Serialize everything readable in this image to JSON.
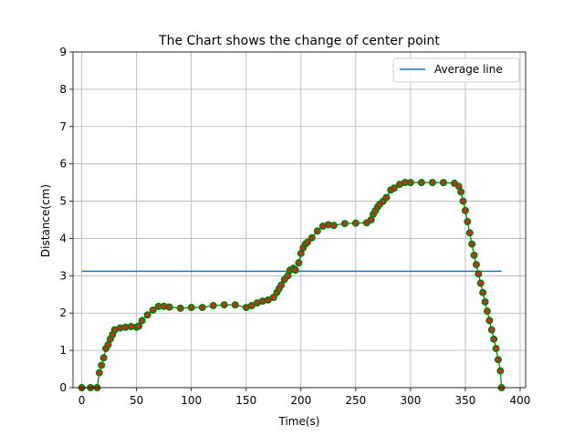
{
  "chart_data": {
    "type": "line",
    "title": "The Chart shows the change of center point",
    "xlabel": "Time(s)",
    "ylabel": "Distance(cm)",
    "xlim": [
      -8,
      405
    ],
    "ylim": [
      0,
      9
    ],
    "xticks": [
      0,
      50,
      100,
      150,
      200,
      250,
      300,
      350,
      400
    ],
    "yticks": [
      0,
      1,
      2,
      3,
      4,
      5,
      6,
      7,
      8,
      9
    ],
    "grid": true,
    "legend": {
      "placement": "top-right",
      "entries": [
        "Average line"
      ]
    },
    "colors": {
      "average_line": "#1f77b4",
      "series_line": "#008000",
      "marker_fill": "#d62728",
      "marker_edge": "#008000",
      "grid": "#b0b0b0"
    },
    "series": [
      {
        "name": "Average line",
        "x": [
          0,
          383
        ],
        "y": [
          3.12,
          3.12
        ]
      },
      {
        "x": [
          0,
          8,
          14,
          16,
          18,
          20,
          22,
          24,
          26,
          28,
          30,
          35,
          40,
          45,
          50,
          52,
          55,
          60,
          65,
          70,
          75,
          80,
          90,
          100,
          110,
          120,
          130,
          140,
          150,
          155,
          160,
          165,
          170,
          175,
          178,
          180,
          182,
          185,
          188,
          190,
          193,
          195,
          198,
          200,
          202,
          204,
          206,
          210,
          215,
          220,
          225,
          230,
          240,
          250,
          260,
          264,
          266,
          268,
          270,
          272,
          275,
          278,
          282,
          285,
          290,
          295,
          300,
          310,
          320,
          330,
          340,
          344,
          346,
          348,
          350,
          352,
          354,
          356,
          358,
          360,
          362,
          364,
          366,
          368,
          370,
          372,
          374,
          376,
          378,
          380,
          382,
          383
        ],
        "y": [
          0,
          0,
          0,
          0.4,
          0.6,
          0.8,
          1.05,
          1.15,
          1.3,
          1.42,
          1.55,
          1.6,
          1.62,
          1.64,
          1.62,
          1.65,
          1.8,
          1.95,
          2.08,
          2.18,
          2.18,
          2.16,
          2.13,
          2.15,
          2.15,
          2.2,
          2.22,
          2.22,
          2.15,
          2.2,
          2.27,
          2.32,
          2.35,
          2.42,
          2.55,
          2.65,
          2.75,
          2.9,
          3.0,
          3.15,
          3.2,
          3.15,
          3.35,
          3.6,
          3.75,
          3.85,
          3.9,
          4.02,
          4.2,
          4.33,
          4.37,
          4.35,
          4.4,
          4.41,
          4.42,
          4.5,
          4.65,
          4.75,
          4.85,
          4.92,
          5.0,
          5.1,
          5.3,
          5.35,
          5.45,
          5.5,
          5.5,
          5.5,
          5.5,
          5.5,
          5.48,
          5.4,
          5.25,
          5.0,
          4.75,
          4.45,
          4.15,
          3.85,
          3.55,
          3.3,
          3.05,
          2.8,
          2.55,
          2.3,
          2.05,
          1.8,
          1.55,
          1.3,
          1.05,
          0.75,
          0.45,
          0
        ]
      }
    ]
  }
}
